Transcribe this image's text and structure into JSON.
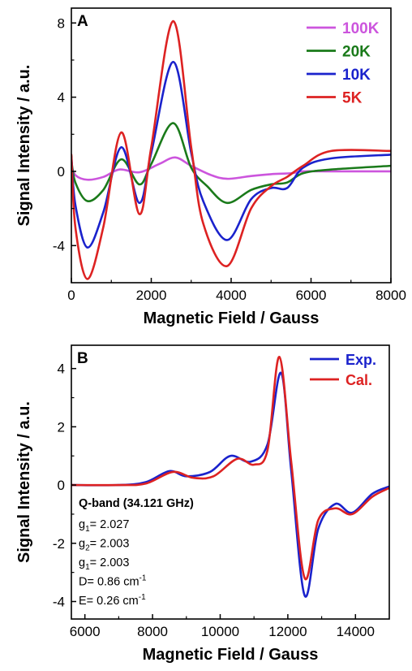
{
  "chart_data": [
    {
      "type": "line",
      "panel_label": "A",
      "xlabel": "Magnetic Field / Gauss",
      "ylabel": "Signal Intensity / a.u.",
      "xlim": [
        0,
        8000
      ],
      "ylim": [
        -6.0,
        8.8
      ],
      "xticks": [
        0,
        2000,
        4000,
        6000,
        8000
      ],
      "yticks": [
        -4,
        0,
        4,
        8
      ],
      "legend_position": "top-right",
      "series": [
        {
          "name": "100K",
          "color": "#cc55dd",
          "x": [
            0,
            100,
            400,
            800,
            1200,
            1700,
            2200,
            2600,
            3000,
            3500,
            3900,
            4500,
            5000,
            5500,
            5800,
            6500,
            8000
          ],
          "y": [
            0.35,
            -0.2,
            -0.45,
            -0.3,
            0.1,
            -0.05,
            0.4,
            0.75,
            0.3,
            -0.2,
            -0.4,
            -0.25,
            -0.15,
            -0.1,
            0.0,
            0.0,
            0.0
          ]
        },
        {
          "name": "20K",
          "color": "#1a7a1a",
          "x": [
            0,
            100,
            400,
            800,
            1250,
            1700,
            2000,
            2550,
            3000,
            3400,
            3900,
            4500,
            5000,
            5400,
            5800,
            6500,
            8000
          ],
          "y": [
            0.6,
            -0.6,
            -1.6,
            -1.0,
            0.65,
            -0.7,
            0.4,
            2.6,
            0.2,
            -0.8,
            -1.7,
            -1.0,
            -0.7,
            -0.6,
            -0.1,
            0.1,
            0.3
          ]
        },
        {
          "name": "10K",
          "color": "#1a22cc",
          "x": [
            0,
            100,
            400,
            800,
            1250,
            1700,
            2000,
            2550,
            3000,
            3300,
            3900,
            4500,
            5000,
            5400,
            5800,
            6500,
            8000
          ],
          "y": [
            0.8,
            -1.8,
            -4.1,
            -2.2,
            1.3,
            -1.7,
            1.0,
            5.9,
            1.0,
            -1.6,
            -3.7,
            -1.5,
            -0.9,
            -0.9,
            0.2,
            0.7,
            0.9
          ]
        },
        {
          "name": "5K",
          "color": "#dd2222",
          "x": [
            0,
            100,
            400,
            800,
            1250,
            1700,
            2000,
            2550,
            3000,
            3300,
            3900,
            4500,
            5000,
            5400,
            5800,
            6500,
            8000
          ],
          "y": [
            0.9,
            -3.0,
            -5.8,
            -3.0,
            2.1,
            -2.3,
            1.3,
            8.1,
            1.3,
            -2.8,
            -5.1,
            -2.0,
            -0.8,
            -0.3,
            0.3,
            1.1,
            1.1
          ]
        }
      ]
    },
    {
      "type": "line",
      "panel_label": "B",
      "xlabel": "Magnetic Field / Gauss",
      "ylabel": "Signal Intensity / a.u.",
      "xlim": [
        5600,
        15000
      ],
      "ylim": [
        -4.6,
        4.8
      ],
      "xticks": [
        6000,
        8000,
        10000,
        12000,
        14000
      ],
      "yticks": [
        -4,
        -2,
        0,
        2,
        4
      ],
      "legend_position": "top-right",
      "annotation": {
        "title": "Q-band (34.121 GHz)",
        "lines": [
          "g1= 2.027",
          "g2= 2.003",
          "g1= 2.003",
          "D= 0.86 cm-1",
          "E= 0.26 cm-1"
        ]
      },
      "series": [
        {
          "name": "Exp.",
          "color": "#1a22cc",
          "x": [
            5600,
            7000,
            7800,
            8500,
            9000,
            9700,
            10300,
            10900,
            11400,
            11800,
            12100,
            12500,
            12900,
            13400,
            13900,
            14500,
            15000
          ],
          "y": [
            0.0,
            0.0,
            0.1,
            0.48,
            0.3,
            0.45,
            1.0,
            0.8,
            1.4,
            3.85,
            0.5,
            -3.8,
            -1.5,
            -0.65,
            -0.95,
            -0.3,
            -0.05
          ]
        },
        {
          "name": "Cal.",
          "color": "#dd2222",
          "x": [
            5600,
            7000,
            7800,
            8600,
            9200,
            9800,
            10500,
            11000,
            11400,
            11750,
            12100,
            12500,
            12900,
            13400,
            13900,
            14500,
            15000
          ],
          "y": [
            0.0,
            0.0,
            0.05,
            0.45,
            0.25,
            0.3,
            0.9,
            0.7,
            1.2,
            4.4,
            0.8,
            -3.2,
            -1.2,
            -0.8,
            -1.0,
            -0.4,
            -0.1
          ]
        }
      ]
    }
  ]
}
